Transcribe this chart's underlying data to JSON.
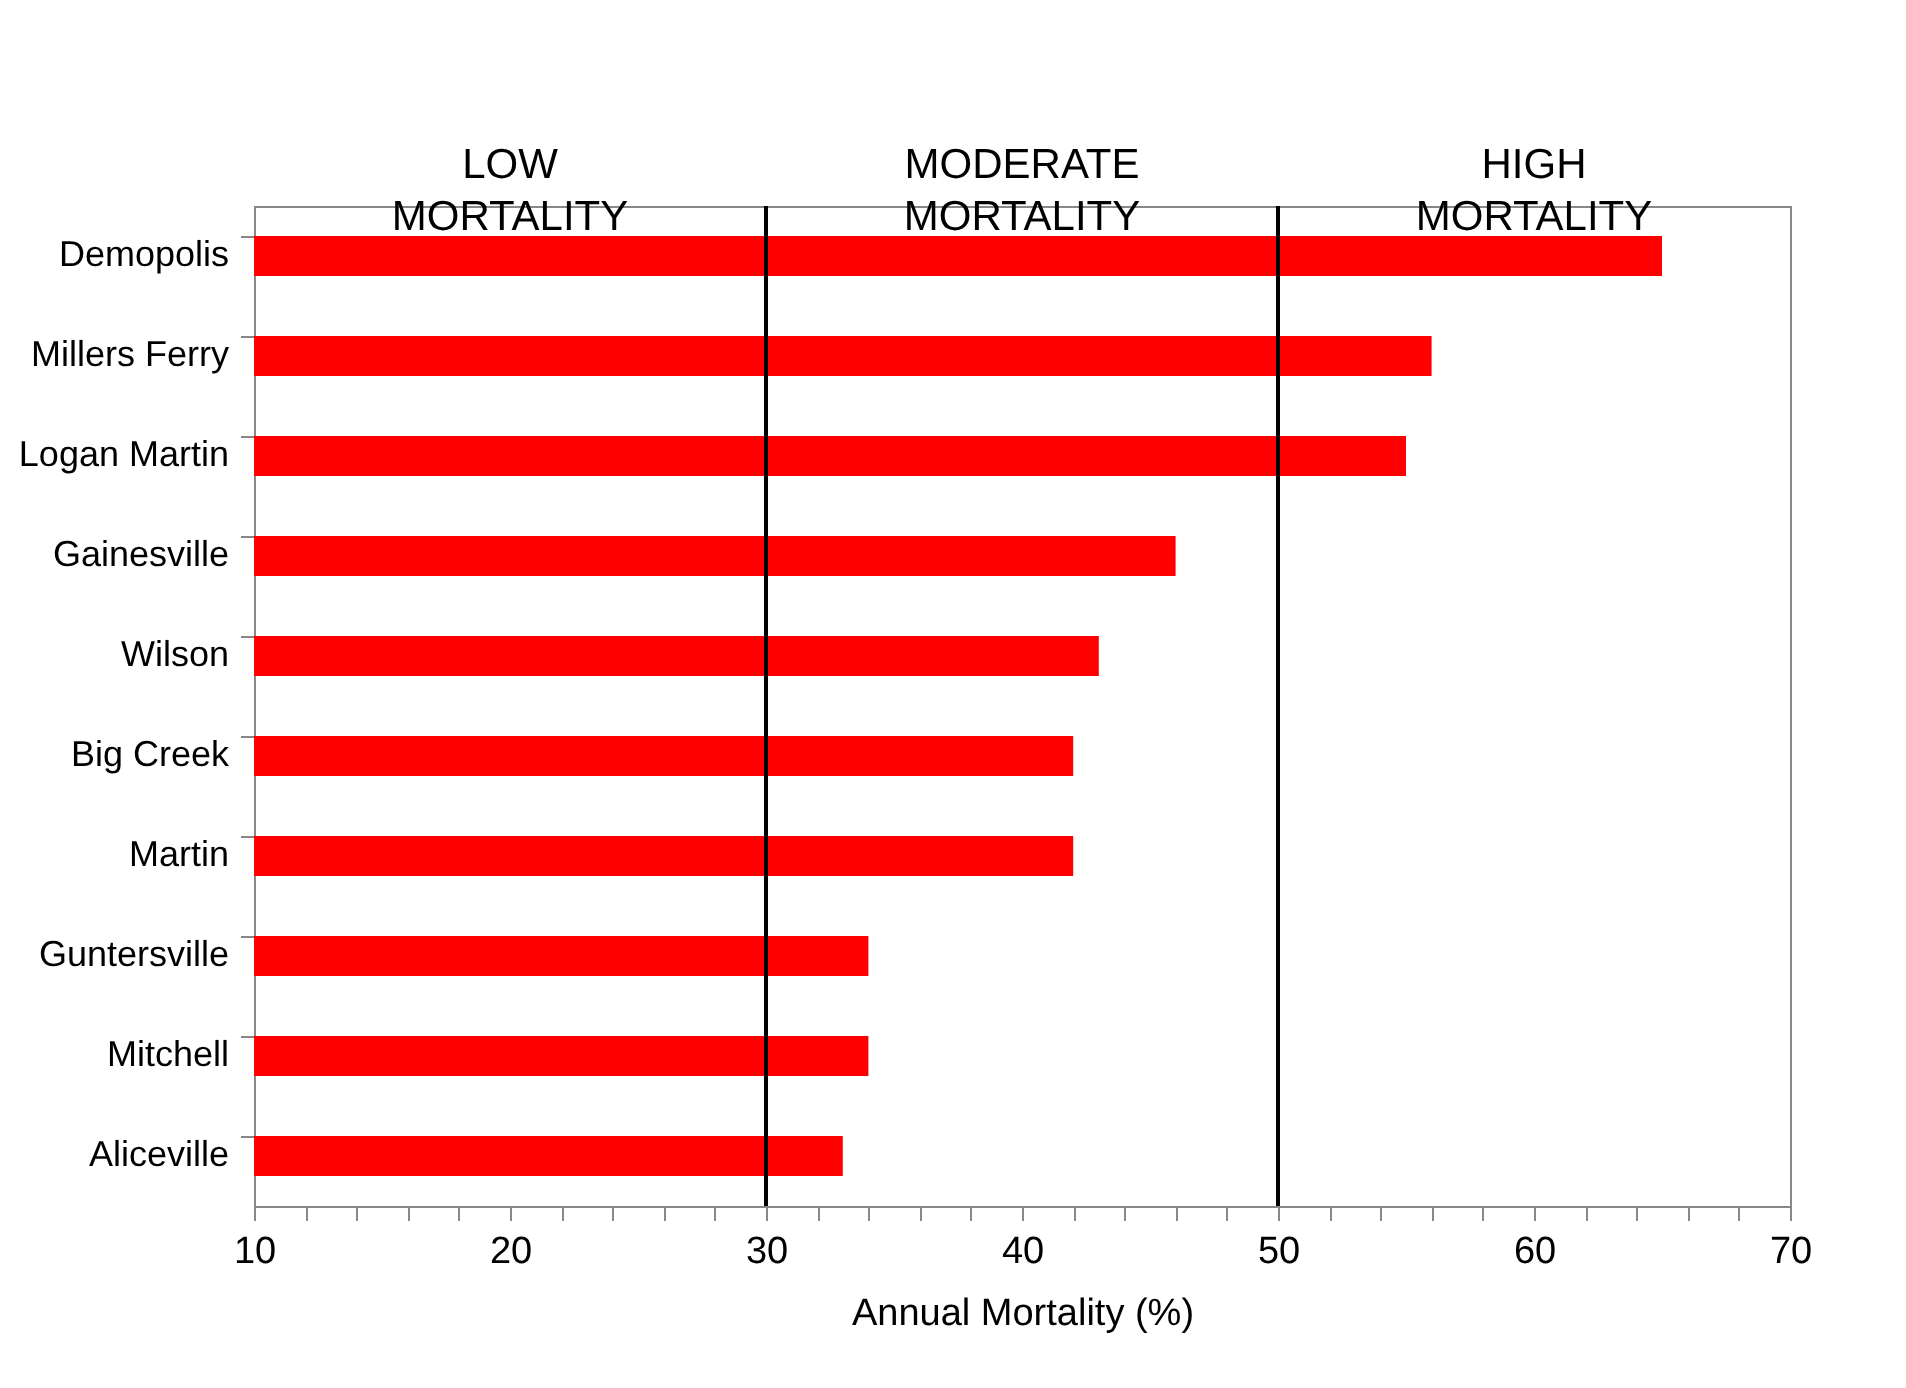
{
  "chart_data": {
    "type": "bar",
    "orientation": "horizontal",
    "xlabel": "Annual Mortality (%)",
    "categories": [
      "Demopolis",
      "Millers Ferry",
      "Logan Martin",
      "Gainesville",
      "Wilson",
      "Big Creek",
      "Martin",
      "Guntersville",
      "Mitchell",
      "Aliceville"
    ],
    "values": [
      65,
      56,
      55,
      46,
      43,
      42,
      42,
      34,
      34,
      33
    ],
    "color": "#ff0000",
    "xlim": [
      10,
      70
    ],
    "xticks": [
      10,
      {
        "value": 12,
        "label": null
      },
      {
        "value": 14,
        "label": null
      },
      {
        "value": 16,
        "label": null
      },
      {
        "value": 18,
        "label": null
      },
      20,
      {
        "value": 22,
        "label": null
      },
      {
        "value": 24,
        "label": null
      },
      {
        "value": 26,
        "label": null
      },
      {
        "value": 28,
        "label": null
      },
      30,
      {
        "value": 32,
        "label": null
      },
      {
        "value": 34,
        "label": null
      },
      {
        "value": 36,
        "label": null
      },
      {
        "value": 38,
        "label": null
      },
      40,
      {
        "value": 42,
        "label": null
      },
      {
        "value": 44,
        "label": null
      },
      {
        "value": 46,
        "label": null
      },
      {
        "value": 48,
        "label": null
      },
      50,
      {
        "value": 52,
        "label": null
      },
      {
        "value": 54,
        "label": null
      },
      {
        "value": 56,
        "label": null
      },
      {
        "value": 58,
        "label": null
      },
      60,
      {
        "value": 62,
        "label": null
      },
      {
        "value": 64,
        "label": null
      },
      {
        "value": 66,
        "label": null
      },
      {
        "value": 68,
        "label": null
      },
      70
    ],
    "ref_lines": [
      {
        "axis": "x",
        "value": 30,
        "color": "#000000"
      },
      {
        "axis": "x",
        "value": 50,
        "color": "#000000"
      }
    ],
    "annotations": [
      "LOW MORTALITY",
      "MODERATE MORTALITY",
      "HIGH MORTALITY"
    ],
    "grid": false
  }
}
